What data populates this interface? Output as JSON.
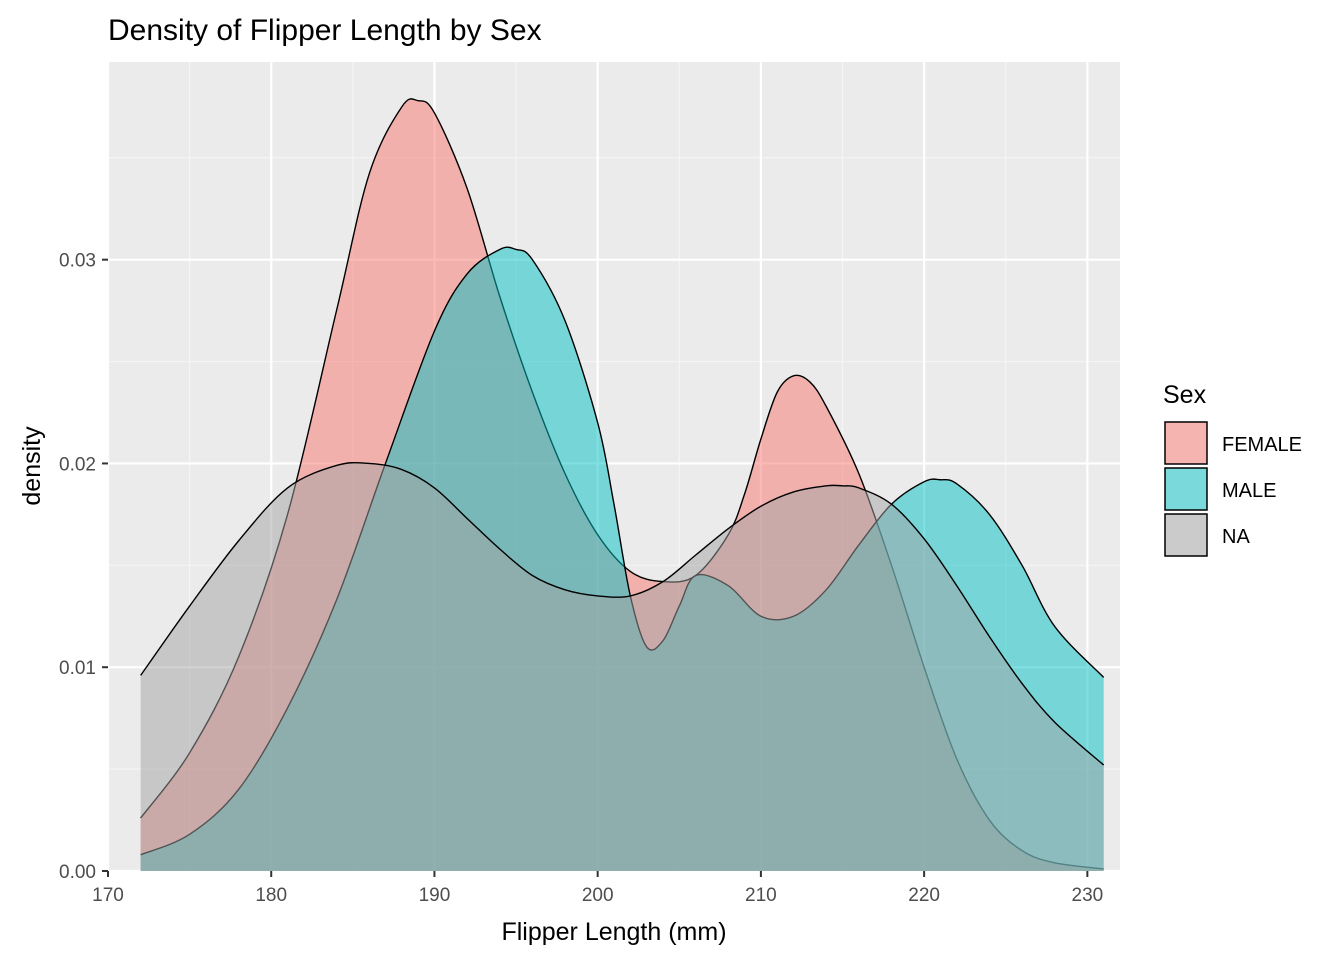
{
  "chart_data": {
    "type": "area",
    "title": "Density of Flipper Length by Sex",
    "xlabel": "Flipper Length (mm)",
    "ylabel": "density",
    "xlim": [
      170,
      232
    ],
    "ylim": [
      0,
      0.0397
    ],
    "x_ticks": [
      170,
      180,
      190,
      200,
      210,
      220,
      230
    ],
    "x_tick_labels": [
      "170",
      "180",
      "190",
      "200",
      "210",
      "220",
      "230"
    ],
    "y_ticks": [
      0,
      0.01,
      0.02,
      0.03
    ],
    "y_tick_labels": [
      "0.00",
      "0.01",
      "0.02",
      "0.03"
    ],
    "grid": true,
    "legend": {
      "title": "Sex",
      "position": "right"
    },
    "series": [
      {
        "name": "FEMALE",
        "color": "#F8766D",
        "x": [
          172,
          175,
          178,
          181,
          184,
          186,
          188,
          189,
          190,
          192,
          194,
          196,
          198,
          200,
          202,
          204,
          206,
          208,
          209,
          210,
          211,
          212,
          213,
          214,
          216,
          218,
          220,
          222,
          224,
          226,
          228,
          231
        ],
        "y": [
          0.0026,
          0.0058,
          0.0105,
          0.0175,
          0.0275,
          0.0342,
          0.0375,
          0.0378,
          0.0372,
          0.0335,
          0.0282,
          0.0235,
          0.0195,
          0.0165,
          0.0147,
          0.0142,
          0.0145,
          0.0165,
          0.0185,
          0.0212,
          0.0235,
          0.0243,
          0.024,
          0.0228,
          0.0195,
          0.015,
          0.01,
          0.0055,
          0.0025,
          0.001,
          0.0004,
          0.0001
        ]
      },
      {
        "name": "MALE",
        "color": "#00BFC4",
        "x": [
          172,
          175,
          178,
          181,
          184,
          187,
          190,
          192,
          194,
          195,
          196,
          198,
          200,
          201,
          202,
          203,
          204,
          205,
          206,
          208,
          210,
          212,
          214,
          216,
          218,
          220,
          221,
          222,
          224,
          226,
          228,
          231
        ],
        "y": [
          0.0008,
          0.0018,
          0.004,
          0.008,
          0.0133,
          0.02,
          0.0265,
          0.0293,
          0.0305,
          0.0305,
          0.03,
          0.027,
          0.022,
          0.018,
          0.0135,
          0.011,
          0.0113,
          0.013,
          0.0145,
          0.014,
          0.0125,
          0.0125,
          0.0138,
          0.016,
          0.018,
          0.0191,
          0.0192,
          0.019,
          0.0175,
          0.015,
          0.012,
          0.0095
        ]
      },
      {
        "name": "NA",
        "color": "#A3A3A3",
        "x": [
          172,
          175,
          178,
          181,
          184,
          186,
          188,
          190,
          192,
          194,
          196,
          198,
          200,
          202,
          204,
          206,
          208,
          210,
          212,
          214,
          215,
          216,
          218,
          220,
          222,
          224,
          226,
          228,
          231
        ],
        "y": [
          0.0096,
          0.013,
          0.0162,
          0.0188,
          0.0199,
          0.02,
          0.0197,
          0.0188,
          0.0173,
          0.0158,
          0.0145,
          0.0138,
          0.0135,
          0.0135,
          0.0142,
          0.0155,
          0.0168,
          0.0179,
          0.0186,
          0.0189,
          0.0189,
          0.0188,
          0.018,
          0.0163,
          0.014,
          0.0115,
          0.0092,
          0.0073,
          0.0052
        ]
      }
    ]
  }
}
